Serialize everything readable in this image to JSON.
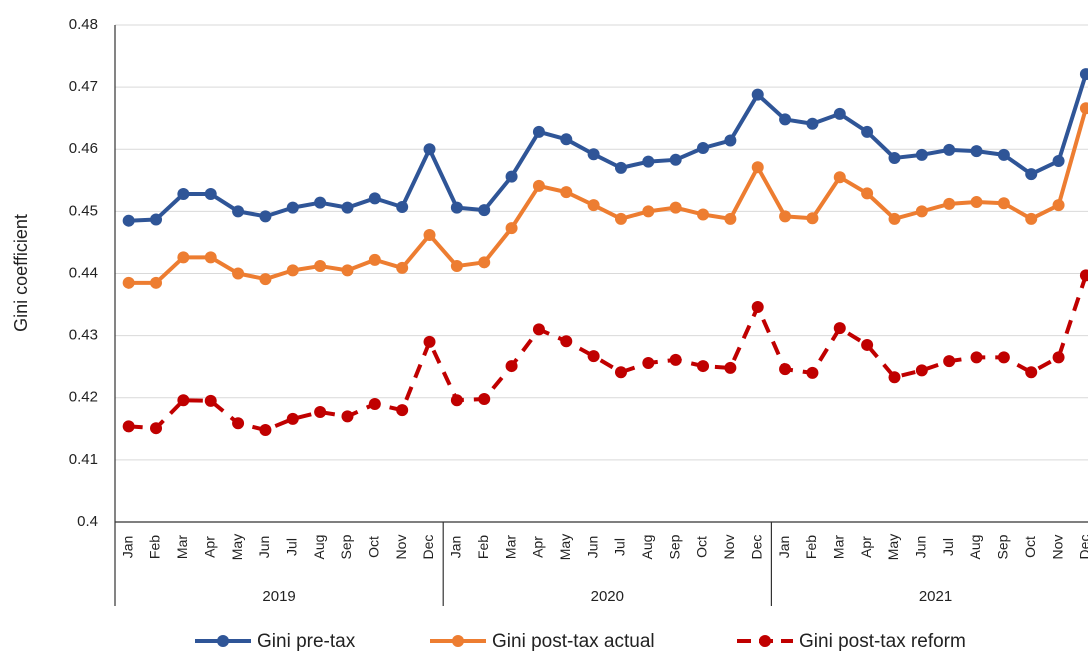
{
  "chart_data": {
    "type": "line",
    "y_label": "Gini coefficient",
    "categories": [
      "Jan",
      "Feb",
      "Mar",
      "Apr",
      "May",
      "Jun",
      "Jul",
      "Aug",
      "Sep",
      "Oct",
      "Nov",
      "Dec",
      "Jan",
      "Feb",
      "Mar",
      "Apr",
      "May",
      "Jun",
      "Jul",
      "Aug",
      "Sep",
      "Oct",
      "Nov",
      "Dec",
      "Jan",
      "Feb",
      "Mar",
      "Apr",
      "May",
      "Jun",
      "Jul",
      "Aug",
      "Sep",
      "Oct",
      "Nov",
      "Dec"
    ],
    "groups": [
      "2019",
      "2020",
      "2021"
    ],
    "series": [
      {
        "name": "Gini pre-tax",
        "color": "#2f5597",
        "dashed": false,
        "values": [
          0.4485,
          0.4487,
          0.4528,
          0.4528,
          0.45,
          0.4492,
          0.4506,
          0.4514,
          0.4506,
          0.4521,
          0.4507,
          0.46,
          0.4506,
          0.4502,
          0.4556,
          0.4628,
          0.4616,
          0.4592,
          0.457,
          0.458,
          0.4583,
          0.4602,
          0.4614,
          0.4688,
          0.4648,
          0.4641,
          0.4657,
          0.4628,
          0.4586,
          0.4591,
          0.4599,
          0.4597,
          0.4591,
          0.456,
          0.4581,
          0.4721
        ]
      },
      {
        "name": "Gini post-tax actual",
        "color": "#ed7d31",
        "dashed": false,
        "values": [
          0.4385,
          0.4385,
          0.4426,
          0.4426,
          0.44,
          0.4391,
          0.4405,
          0.4412,
          0.4405,
          0.4422,
          0.4409,
          0.4462,
          0.4412,
          0.4418,
          0.4473,
          0.4541,
          0.4531,
          0.451,
          0.4488,
          0.45,
          0.4506,
          0.4495,
          0.4488,
          0.4571,
          0.4492,
          0.4489,
          0.4555,
          0.4529,
          0.4488,
          0.45,
          0.4512,
          0.4515,
          0.4513,
          0.4488,
          0.451,
          0.4666
        ]
      },
      {
        "name": "Gini post-tax reform",
        "color": "#c00000",
        "dashed": true,
        "values": [
          0.4154,
          0.4151,
          0.4196,
          0.4195,
          0.4159,
          0.4148,
          0.4166,
          0.4177,
          0.417,
          0.419,
          0.418,
          0.429,
          0.4196,
          0.4198,
          0.4251,
          0.431,
          0.4291,
          0.4267,
          0.4241,
          0.4256,
          0.4261,
          0.4251,
          0.4248,
          0.4346,
          0.4246,
          0.424,
          0.4312,
          0.4285,
          0.4233,
          0.4244,
          0.4259,
          0.4265,
          0.4265,
          0.4241,
          0.4265,
          0.4397
        ]
      }
    ],
    "ylim": [
      0.4,
      0.48
    ],
    "yticks": [
      0.4,
      0.41,
      0.42,
      0.43,
      0.44,
      0.45,
      0.46,
      0.47,
      0.48
    ],
    "grid": true
  }
}
